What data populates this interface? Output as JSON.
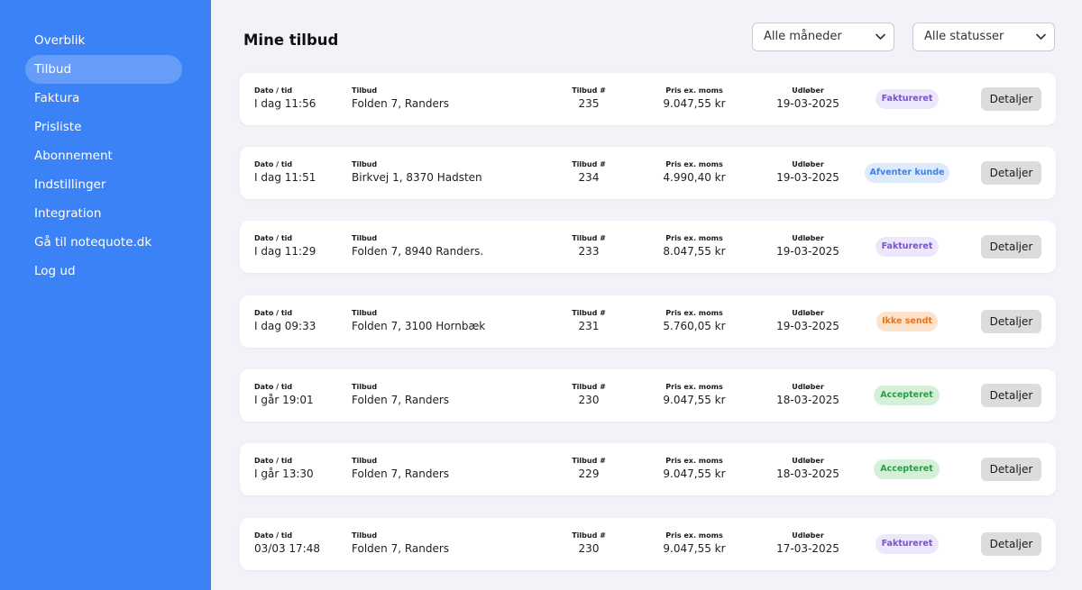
{
  "sidebar": {
    "items": [
      {
        "label": "Overblik",
        "active": false
      },
      {
        "label": "Tilbud",
        "active": true
      },
      {
        "label": "Faktura",
        "active": false
      },
      {
        "label": "Prisliste",
        "active": false
      },
      {
        "label": "Abonnement",
        "active": false
      },
      {
        "label": "Indstillinger",
        "active": false
      },
      {
        "label": "Integration",
        "active": false
      },
      {
        "label": "Gå til notequote.dk",
        "active": false
      },
      {
        "label": "Log ud",
        "active": false
      }
    ]
  },
  "header": {
    "title": "Mine tilbud",
    "month_filter": "Alle måneder",
    "status_filter": "Alle statusser"
  },
  "columns": {
    "date": "Dato / tid",
    "offer": "Tilbud",
    "number": "Tilbud #",
    "price": "Pris ex. moms",
    "expires": "Udløber"
  },
  "details_label": "Detaljer",
  "statuses": {
    "faktureret": {
      "bg": "#ede7fb",
      "fg": "#7c4fd6"
    },
    "afventer": {
      "bg": "#dceafb",
      "fg": "#3b82f6"
    },
    "ikke_sendt": {
      "bg": "#fde2cc",
      "fg": "#e8741e"
    },
    "accepteret": {
      "bg": "#d4f0d9",
      "fg": "#2f9b47"
    }
  },
  "rows": [
    {
      "date": "I dag 11:56",
      "offer": "Folden 7, Randers",
      "number": "235",
      "price": "9.047,55 kr",
      "expires": "19-03-2025",
      "status": "Faktureret",
      "status_key": "faktureret"
    },
    {
      "date": "I dag 11:51",
      "offer": "Birkvej 1, 8370 Hadsten",
      "number": "234",
      "price": "4.990,40 kr",
      "expires": "19-03-2025",
      "status": "Afventer kunde",
      "status_key": "afventer"
    },
    {
      "date": "I dag 11:29",
      "offer": "Folden 7, 8940 Randers.",
      "number": "233",
      "price": "8.047,55 kr",
      "expires": "19-03-2025",
      "status": "Faktureret",
      "status_key": "faktureret"
    },
    {
      "date": "I dag 09:33",
      "offer": "Folden 7, 3100 Hornbæk",
      "number": "231",
      "price": "5.760,05 kr",
      "expires": "19-03-2025",
      "status": "Ikke sendt",
      "status_key": "ikke_sendt"
    },
    {
      "date": "I går 19:01",
      "offer": "Folden 7, Randers",
      "number": "230",
      "price": "9.047,55 kr",
      "expires": "18-03-2025",
      "status": "Accepteret",
      "status_key": "accepteret"
    },
    {
      "date": "I går 13:30",
      "offer": "Folden 7, Randers",
      "number": "229",
      "price": "9.047,55 kr",
      "expires": "18-03-2025",
      "status": "Accepteret",
      "status_key": "accepteret"
    },
    {
      "date": "03/03 17:48",
      "offer": "Folden 7, Randers",
      "number": "230",
      "price": "9.047,55 kr",
      "expires": "17-03-2025",
      "status": "Faktureret",
      "status_key": "faktureret"
    }
  ]
}
